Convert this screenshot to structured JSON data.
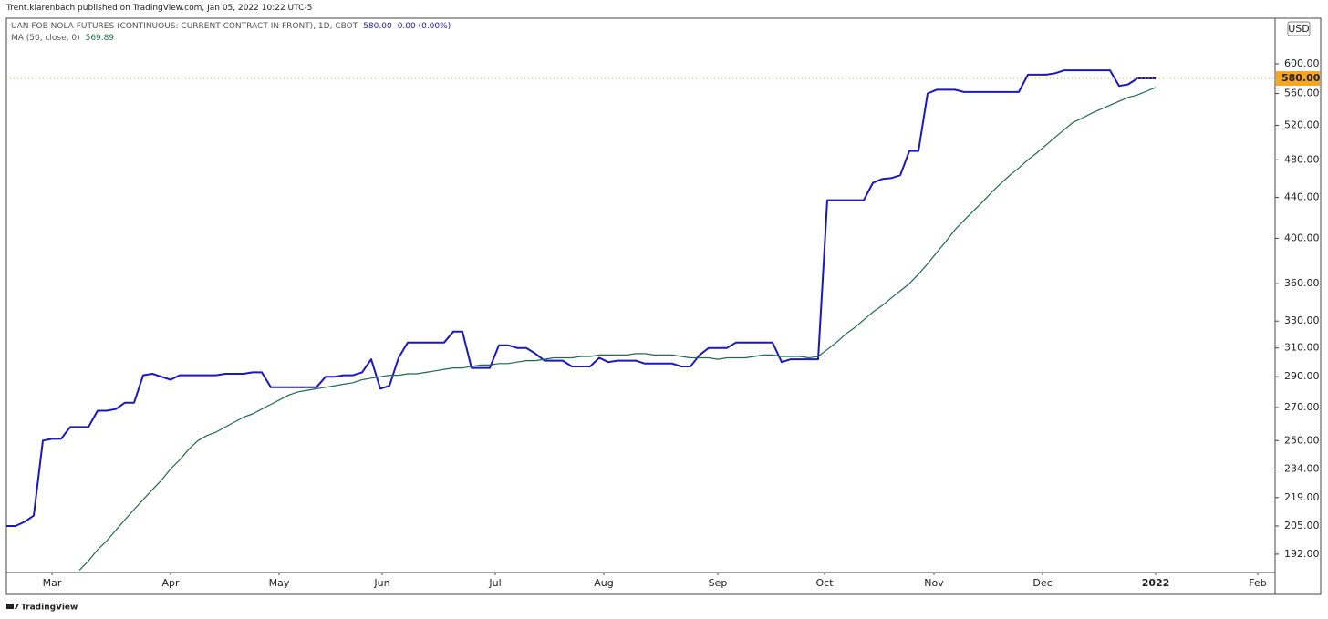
{
  "header": {
    "publisher": "Trent.klarenbach published on TradingView.com, Jan 05, 2022 10:22 UTC-5"
  },
  "chart_data": {
    "type": "line",
    "scale": "log",
    "grid": false,
    "currency": "USD",
    "series": [
      {
        "name": "UAN FOB NOLA FUTURES (CONTINUOUS: CURRENT CONTRACT IN FRONT), 1D, CBOT",
        "color": "#1a17c4",
        "legend_values": [
          "580.00",
          "0.00 (0.00%)"
        ],
        "values": [
          205,
          205,
          207,
          210,
          250,
          251,
          251,
          258,
          258,
          258,
          268,
          268,
          269,
          273,
          273,
          291,
          292,
          290,
          288,
          291,
          291,
          291,
          291,
          291,
          292,
          292,
          292,
          293,
          293,
          283,
          283,
          283,
          283,
          283,
          283,
          290,
          290,
          291,
          291,
          293,
          302,
          282,
          284,
          303,
          314,
          314,
          314,
          314,
          314,
          322,
          322,
          296,
          296,
          296,
          312,
          312,
          310,
          310,
          306,
          301,
          301,
          301,
          297,
          297,
          297,
          303,
          300,
          301,
          301,
          301,
          299,
          299,
          299,
          299,
          297,
          297,
          305,
          310,
          310,
          310,
          314,
          314,
          314,
          314,
          314,
          300,
          302,
          302,
          302,
          302,
          437,
          437,
          437,
          437,
          437,
          455,
          459,
          460,
          463,
          490,
          490,
          560,
          565,
          565,
          565,
          562,
          562,
          562,
          562,
          562,
          562,
          562,
          585,
          585,
          585,
          587,
          591,
          591,
          591,
          591,
          591,
          591,
          570,
          572,
          580,
          580,
          580
        ]
      },
      {
        "name": "MA (50, close, 0)",
        "color": "#1f6b4a",
        "legend_values": [
          "569.89"
        ],
        "values": [
          null,
          null,
          null,
          null,
          null,
          null,
          null,
          null,
          185,
          189,
          194,
          198,
          203,
          208,
          213,
          218,
          223,
          228,
          234,
          239,
          245,
          250,
          253,
          255,
          258,
          261,
          264,
          266,
          269,
          272,
          275,
          278,
          280,
          281,
          282,
          283,
          284,
          285,
          286,
          288,
          289,
          290,
          291,
          291,
          292,
          292,
          293,
          294,
          295,
          296,
          296,
          297,
          298,
          298,
          299,
          299,
          300,
          301,
          301,
          302,
          303,
          303,
          303,
          304,
          304,
          305,
          305,
          305,
          305,
          306,
          306,
          305,
          305,
          305,
          304,
          303,
          303,
          303,
          302,
          303,
          303,
          303,
          304,
          305,
          305,
          304,
          304,
          304,
          303,
          304,
          309,
          314,
          320,
          325,
          331,
          337,
          342,
          348,
          354,
          360,
          368,
          377,
          387,
          397,
          408,
          417,
          426,
          435,
          445,
          454,
          463,
          471,
          480,
          488,
          497,
          506,
          515,
          524,
          529,
          535,
          540,
          545,
          550,
          555,
          558,
          563,
          568
        ]
      }
    ],
    "last_price": {
      "value": 580,
      "label": "580.00",
      "color": "#f5a623"
    },
    "ylim": [
      184,
      667
    ],
    "yticks": [
      {
        "value": 192,
        "label": "192.00"
      },
      {
        "value": 205,
        "label": "205.00"
      },
      {
        "value": 219,
        "label": "219.00"
      },
      {
        "value": 234,
        "label": "234.00"
      },
      {
        "value": 250,
        "label": "250.00"
      },
      {
        "value": 270,
        "label": "270.00"
      },
      {
        "value": 290,
        "label": "290.00"
      },
      {
        "value": 310,
        "label": "310.00"
      },
      {
        "value": 330,
        "label": "330.00"
      },
      {
        "value": 360,
        "label": "360.00"
      },
      {
        "value": 400,
        "label": "400.00"
      },
      {
        "value": 440,
        "label": "440.00"
      },
      {
        "value": 480,
        "label": "480.00"
      },
      {
        "value": 520,
        "label": "520.00"
      },
      {
        "value": 560,
        "label": "560.00"
      },
      {
        "value": 600,
        "label": "600.00"
      }
    ],
    "xlim": [
      0,
      139.1
    ],
    "xticks": [
      {
        "value": 5,
        "label": "Mar"
      },
      {
        "value": 18,
        "label": "Apr"
      },
      {
        "value": 29.9,
        "label": "May"
      },
      {
        "value": 41.2,
        "label": "Jun"
      },
      {
        "value": 53.6,
        "label": "Jul"
      },
      {
        "value": 65.5,
        "label": "Aug"
      },
      {
        "value": 78,
        "label": "Sep"
      },
      {
        "value": 89.7,
        "label": "Oct"
      },
      {
        "value": 101.7,
        "label": "Nov"
      },
      {
        "value": 113.6,
        "label": "Dec"
      },
      {
        "value": 126,
        "label": "2022"
      },
      {
        "value": 137.2,
        "label": "Feb"
      }
    ]
  },
  "footer": {
    "brand": "TradingView"
  }
}
